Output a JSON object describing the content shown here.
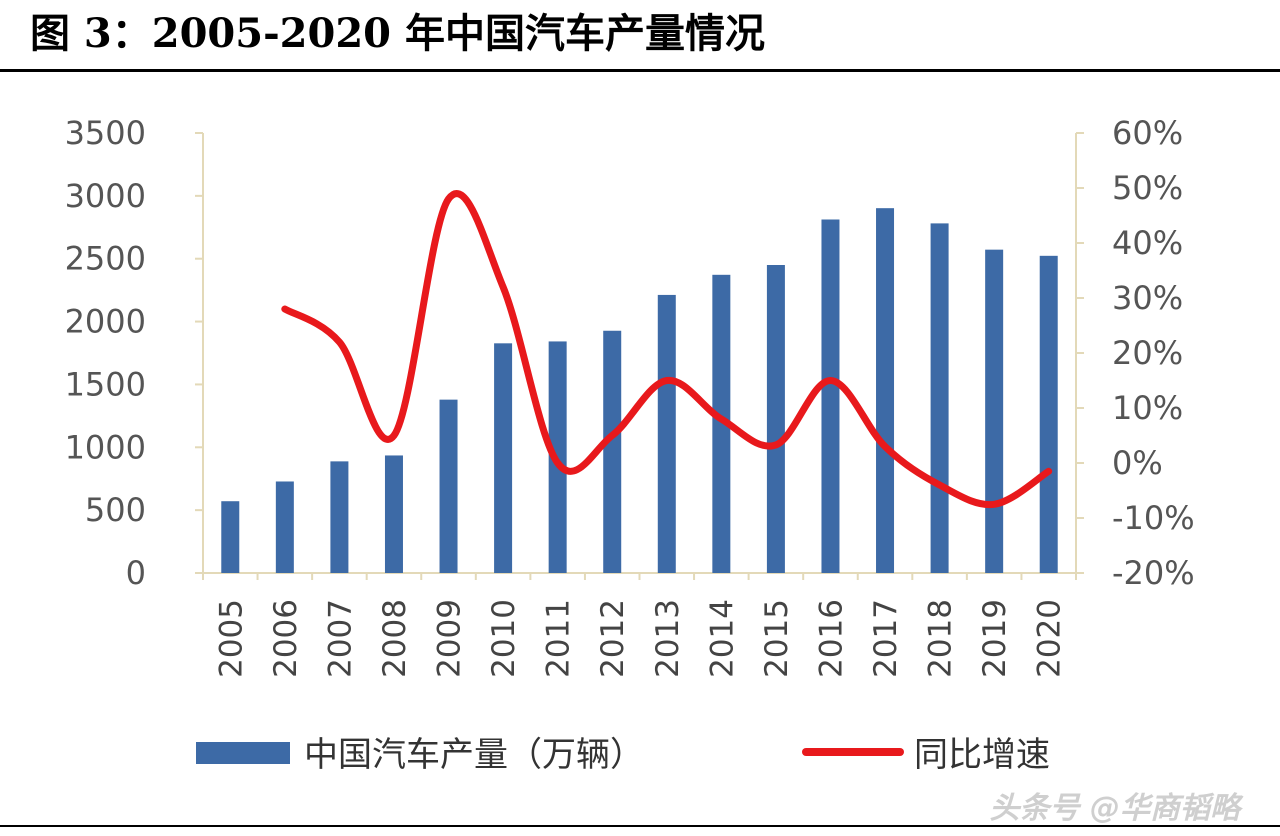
{
  "title": "图 3：2005-2020 年中国汽车产量情况",
  "watermark": "头条号 @华商韬略",
  "colors": {
    "bar": "#3d6aa6",
    "line": "#e8191c",
    "axis": "#e3d9b8"
  },
  "chart_data": {
    "type": "bar",
    "categories": [
      "2005",
      "2006",
      "2007",
      "2008",
      "2009",
      "2010",
      "2011",
      "2012",
      "2013",
      "2014",
      "2015",
      "2016",
      "2017",
      "2018",
      "2019",
      "2020"
    ],
    "series": [
      {
        "name": "中国汽车产量（万辆）",
        "type": "bar",
        "axis": "left",
        "values": [
          571,
          728,
          888,
          935,
          1379,
          1827,
          1842,
          1927,
          2212,
          2372,
          2450,
          2812,
          2902,
          2781,
          2572,
          2523
        ]
      },
      {
        "name": "同比增速",
        "type": "line",
        "axis": "right",
        "values": [
          null,
          28,
          22,
          5,
          48,
          32,
          0,
          5,
          15,
          8,
          3.3,
          15,
          3,
          -4,
          -7.5,
          -1.5
        ]
      }
    ],
    "left_axis": {
      "ylim": [
        0,
        3500
      ],
      "ticks": [
        "0",
        "500",
        "1000",
        "1500",
        "2000",
        "2500",
        "3000",
        "3500"
      ]
    },
    "right_axis": {
      "ylim": [
        -20,
        60
      ],
      "ticks": [
        "-20%",
        "-10%",
        "0%",
        "10%",
        "20%",
        "30%",
        "40%",
        "50%",
        "60%"
      ]
    },
    "legend_position": "bottom",
    "grid": false
  }
}
